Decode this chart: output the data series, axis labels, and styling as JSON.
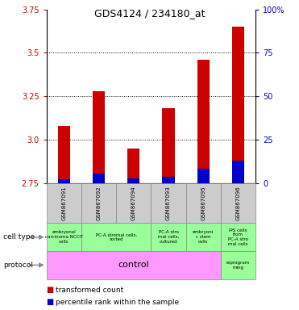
{
  "title": "GDS4124 / 234180_at",
  "samples": [
    "GSM867091",
    "GSM867092",
    "GSM867094",
    "GSM867093",
    "GSM867095",
    "GSM867096"
  ],
  "transformed_counts": [
    3.08,
    3.28,
    2.95,
    3.18,
    3.46,
    3.65
  ],
  "percentile_ranks": [
    2.0,
    5.5,
    2.5,
    3.5,
    8.0,
    13.0
  ],
  "bar_bottom": 2.75,
  "ylim_left": [
    2.75,
    3.75
  ],
  "ylim_right": [
    0,
    100
  ],
  "yticks_left": [
    2.75,
    3.0,
    3.25,
    3.5,
    3.75
  ],
  "yticks_right": [
    0,
    25,
    50,
    75,
    100
  ],
  "ytick_labels_right": [
    "0",
    "25",
    "50",
    "75",
    "100%"
  ],
  "grid_ticks": [
    3.0,
    3.25,
    3.5
  ],
  "red_color": "#cc0000",
  "blue_color": "#0000cc",
  "bar_width": 0.35,
  "cell_type_data": [
    [
      0,
      1,
      "embryonal\ncarcinoma NCCIT\ncells"
    ],
    [
      1,
      3,
      "PC-A stromal cells,\nsorted"
    ],
    [
      3,
      4,
      "PC-A stro\nmal cells,\ncultured"
    ],
    [
      4,
      5,
      "embryoni\nc stem\ncells"
    ],
    [
      5,
      6,
      "IPS cells\nfrom\nPC-A stro\nmal cells"
    ]
  ],
  "cell_type_color": "#99ff99",
  "protocol_color": "#ff99ff",
  "reprogramming_color": "#99ff99",
  "sample_box_color": "#cccccc",
  "legend_items": [
    [
      "#cc0000",
      "transformed count"
    ],
    [
      "#0000cc",
      "percentile rank within the sample"
    ]
  ]
}
